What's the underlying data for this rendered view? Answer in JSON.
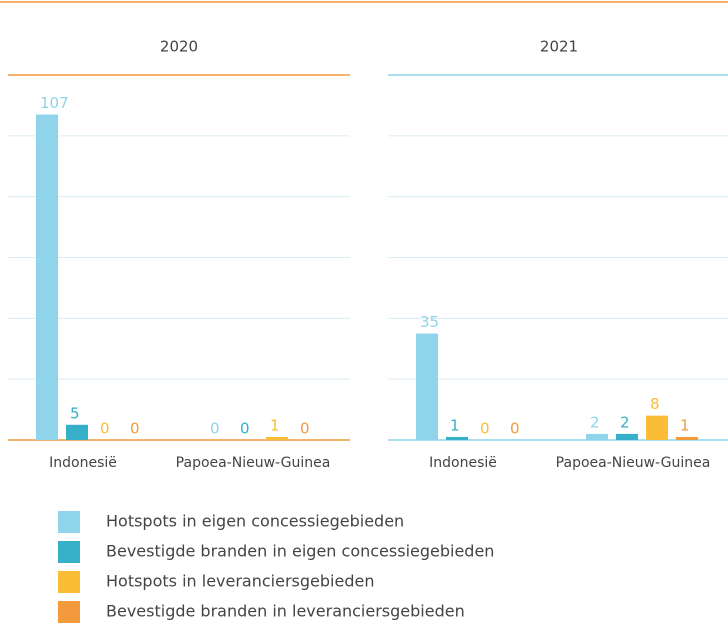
{
  "chart_data": [
    {
      "type": "bar",
      "title": "2020",
      "categories": [
        "Indonesië",
        "Papoea-Nieuw-Guinea"
      ],
      "axis_color": "#f39a3c",
      "ylim": [
        0,
        120
      ],
      "yticks": [
        0,
        20,
        40,
        60,
        80,
        100,
        120
      ],
      "grid": true,
      "series": [
        {
          "name": "Hotspots in eigen concessiegebieden",
          "color": "#8fd4ea",
          "values": [
            107,
            0
          ]
        },
        {
          "name": "Bevestigde branden in eigen concessiegebieden",
          "color": "#35b0c8",
          "values": [
            5,
            0
          ]
        },
        {
          "name": "Hotspots in leveranciersgebieden",
          "color": "#fbbd35",
          "values": [
            0,
            1
          ]
        },
        {
          "name": "Bevestigde branden in leveranciersgebieden",
          "color": "#f39a3c",
          "values": [
            0,
            0
          ]
        }
      ]
    },
    {
      "type": "bar",
      "title": "2021",
      "categories": [
        "Indonesië",
        "Papoea-Nieuw-Guinea"
      ],
      "axis_color": "#8fd4ea",
      "ylim": [
        0,
        120
      ],
      "yticks": [
        0,
        20,
        40,
        60,
        80,
        100,
        120
      ],
      "grid": true,
      "series": [
        {
          "color": "#8fd4ea",
          "values": [
            35,
            2
          ]
        },
        {
          "color": "#35b0c8",
          "values": [
            1,
            2
          ]
        },
        {
          "color": "#fbbd35",
          "values": [
            0,
            8
          ]
        },
        {
          "color": "#f39a3c",
          "values": [
            0,
            1
          ]
        }
      ]
    }
  ]
}
